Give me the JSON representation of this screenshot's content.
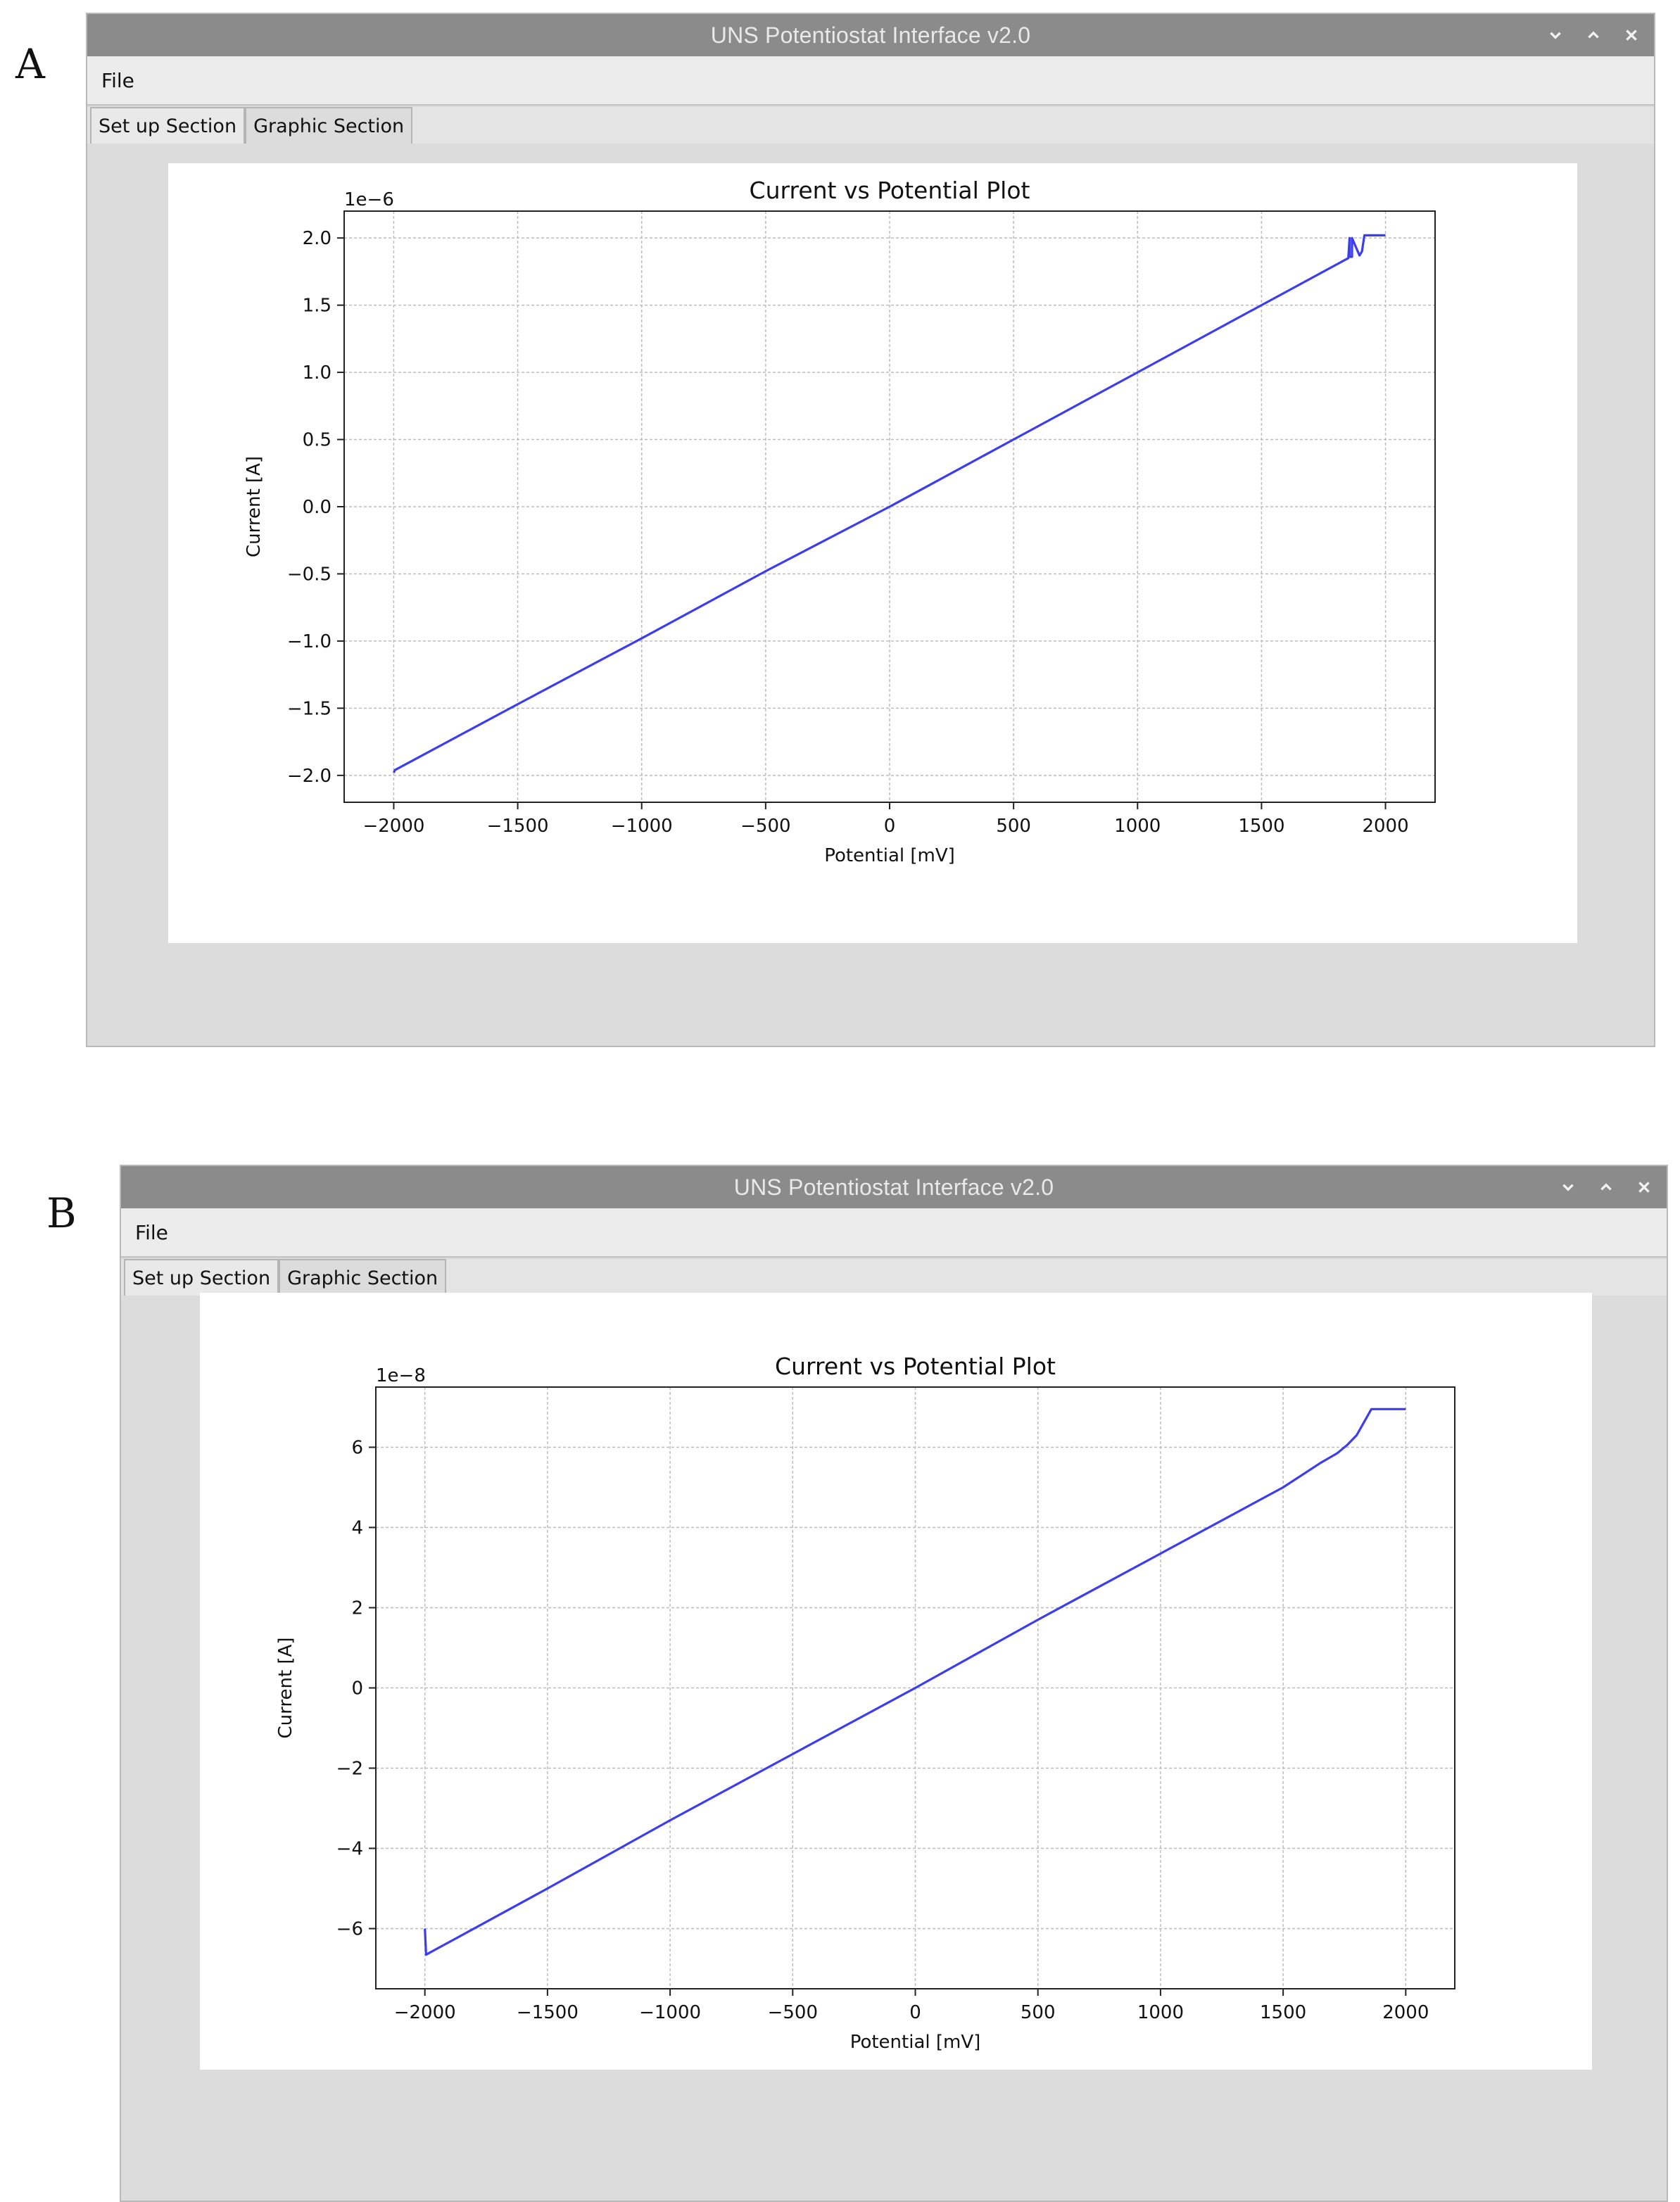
{
  "panels": [
    {
      "label": "A",
      "window": {
        "title": "UNS Potentiostat Interface v2.0",
        "menu": [
          "File"
        ],
        "tabs": [
          "Set up Section",
          "Graphic Section"
        ],
        "active_tab": "Graphic Section",
        "controls": [
          "minimize-icon",
          "maximize-icon",
          "close-icon"
        ]
      }
    },
    {
      "label": "B",
      "window": {
        "title": "UNS Potentiostat Interface v2.0",
        "menu": [
          "File"
        ],
        "tabs": [
          "Set up Section",
          "Graphic Section"
        ],
        "active_tab": "Graphic Section",
        "controls": [
          "minimize-icon",
          "maximize-icon",
          "close-icon"
        ]
      }
    }
  ],
  "chart_data": [
    {
      "type": "line",
      "title": "Current vs Potential Plot",
      "xlabel": "Potential [mV]",
      "ylabel": "Current [A]",
      "offset_text": "1e−6",
      "xlim": [
        -2200,
        2200
      ],
      "ylim": [
        -2.2,
        2.2
      ],
      "xticks": [
        -2000,
        -1500,
        -1000,
        -500,
        0,
        500,
        1000,
        1500,
        2000
      ],
      "xtick_labels": [
        "−2000",
        "−1500",
        "−1000",
        "−500",
        "0",
        "500",
        "1000",
        "1500",
        "2000"
      ],
      "yticks": [
        2.0,
        1.5,
        1.0,
        0.5,
        0.0,
        -0.5,
        -1.0,
        -1.5,
        -2.0
      ],
      "ytick_labels": [
        "2.0",
        "1.5",
        "1.0",
        "0.5",
        "0.0",
        "−0.5",
        "−1.0",
        "−1.5",
        "−2.0"
      ],
      "grid": true,
      "line_color": "#3d3df0",
      "series": [
        {
          "x": [
            -2000,
            -1995,
            -1500,
            -1000,
            -500,
            0,
            500,
            1000,
            1500,
            1850,
            1855,
            1855,
            1865,
            1865,
            1895,
            1905,
            1915,
            1920,
            2000
          ],
          "y": [
            -1.98,
            -1.96,
            -1.47,
            -0.98,
            -0.48,
            0.0,
            0.5,
            1.0,
            1.5,
            1.85,
            2.0,
            1.86,
            1.86,
            2.0,
            1.87,
            1.9,
            2.02,
            2.02,
            2.02
          ]
        }
      ]
    },
    {
      "type": "line",
      "title": "Current vs Potential Plot",
      "xlabel": "Potential [mV]",
      "ylabel": "Current [A]",
      "offset_text": "1e−8",
      "xlim": [
        -2200,
        2200
      ],
      "ylim": [
        -7.5,
        7.5
      ],
      "xticks": [
        -2000,
        -1500,
        -1000,
        -500,
        0,
        500,
        1000,
        1500,
        2000
      ],
      "xtick_labels": [
        "−2000",
        "−1500",
        "−1000",
        "−500",
        "0",
        "500",
        "1000",
        "1500",
        "2000"
      ],
      "yticks": [
        6,
        4,
        2,
        0,
        -2,
        -4,
        -6
      ],
      "ytick_labels": [
        "6",
        "4",
        "2",
        "0",
        "−2",
        "−4",
        "−6"
      ],
      "grid": true,
      "line_color": "#3d3df0",
      "series": [
        {
          "x": [
            -2000,
            -1995,
            -1980,
            -1500,
            -1000,
            -500,
            0,
            500,
            1000,
            1500,
            1650,
            1720,
            1760,
            1800,
            1860,
            1880,
            2000
          ],
          "y": [
            -6.0,
            -6.65,
            -6.6,
            -5.0,
            -3.3,
            -1.65,
            0.0,
            1.7,
            3.35,
            5.0,
            5.6,
            5.85,
            6.05,
            6.3,
            6.95,
            6.95,
            6.95
          ]
        }
      ]
    }
  ]
}
